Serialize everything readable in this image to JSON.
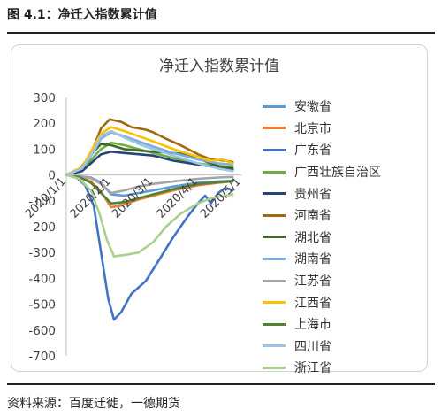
{
  "figure_title": "图 4.1：净迁入指数累计值",
  "source_note": "资料来源：百度迁徙，一德期货",
  "chart_data": {
    "type": "line",
    "title": "净迁入指数累计值",
    "xlabel": "",
    "ylabel": "",
    "xlim": [
      "2020-01-01",
      "2020-05-01"
    ],
    "ylim": [
      -700,
      300
    ],
    "yticks": [
      300,
      200,
      100,
      0,
      -100,
      -200,
      -300,
      -400,
      -500,
      -600,
      -700
    ],
    "xticks": [
      "2020/1/1",
      "2020/2/1",
      "2020/3/1",
      "2020/4/1",
      "2020/5/1"
    ],
    "grid": false,
    "legend_position": "right",
    "series": [
      {
        "name": "安徽省",
        "color": "#5b9bd5",
        "points": [
          [
            "2020-01-01",
            0
          ],
          [
            "2020-01-10",
            -5
          ],
          [
            "2020-01-18",
            -10
          ],
          [
            "2020-01-25",
            -30
          ],
          [
            "2020-02-01",
            -75
          ],
          [
            "2020-02-10",
            -80
          ],
          [
            "2020-02-20",
            -70
          ],
          [
            "2020-03-01",
            -60
          ],
          [
            "2020-03-15",
            -45
          ],
          [
            "2020-04-01",
            -30
          ],
          [
            "2020-04-15",
            -25
          ],
          [
            "2020-04-25",
            -22
          ]
        ]
      },
      {
        "name": "北京市",
        "color": "#ed7d31",
        "points": [
          [
            "2020-01-01",
            0
          ],
          [
            "2020-01-10",
            -8
          ],
          [
            "2020-01-18",
            -25
          ],
          [
            "2020-01-25",
            -65
          ],
          [
            "2020-02-01",
            -125
          ],
          [
            "2020-02-08",
            -118
          ],
          [
            "2020-02-20",
            -95
          ],
          [
            "2020-03-01",
            -80
          ],
          [
            "2020-03-15",
            -60
          ],
          [
            "2020-04-01",
            -40
          ],
          [
            "2020-04-15",
            -30
          ],
          [
            "2020-04-25",
            -25
          ]
        ]
      },
      {
        "name": "广东省",
        "color": "#4472c4",
        "points": [
          [
            "2020-01-01",
            0
          ],
          [
            "2020-01-08",
            -10
          ],
          [
            "2020-01-14",
            -40
          ],
          [
            "2020-01-20",
            -120
          ],
          [
            "2020-01-25",
            -300
          ],
          [
            "2020-01-30",
            -480
          ],
          [
            "2020-02-03",
            -560
          ],
          [
            "2020-02-08",
            -530
          ],
          [
            "2020-02-15",
            -460
          ],
          [
            "2020-02-25",
            -410
          ],
          [
            "2020-03-05",
            -330
          ],
          [
            "2020-03-15",
            -240
          ],
          [
            "2020-03-25",
            -160
          ],
          [
            "2020-04-01",
            -110
          ],
          [
            "2020-04-06",
            -80
          ],
          [
            "2020-04-10",
            -110
          ],
          [
            "2020-04-15",
            -70
          ],
          [
            "2020-04-20",
            -50
          ],
          [
            "2020-04-25",
            -60
          ]
        ]
      },
      {
        "name": "广西壮族自治区",
        "color": "#70ad47",
        "points": [
          [
            "2020-01-01",
            0
          ],
          [
            "2020-01-12",
            20
          ],
          [
            "2020-01-20",
            70
          ],
          [
            "2020-01-25",
            100
          ],
          [
            "2020-02-01",
            125
          ],
          [
            "2020-02-10",
            115
          ],
          [
            "2020-02-20",
            100
          ],
          [
            "2020-03-01",
            85
          ],
          [
            "2020-03-15",
            65
          ],
          [
            "2020-04-01",
            45
          ],
          [
            "2020-04-15",
            35
          ],
          [
            "2020-04-25",
            30
          ]
        ]
      },
      {
        "name": "贵州省",
        "color": "#264478",
        "points": [
          [
            "2020-01-01",
            0
          ],
          [
            "2020-01-12",
            15
          ],
          [
            "2020-01-20",
            55
          ],
          [
            "2020-01-25",
            80
          ],
          [
            "2020-02-01",
            90
          ],
          [
            "2020-02-10",
            85
          ],
          [
            "2020-02-20",
            80
          ],
          [
            "2020-03-01",
            75
          ],
          [
            "2020-03-15",
            55
          ],
          [
            "2020-04-01",
            40
          ],
          [
            "2020-04-15",
            30
          ],
          [
            "2020-04-25",
            25
          ]
        ]
      },
      {
        "name": "河南省",
        "color": "#9e6a14",
        "points": [
          [
            "2020-01-01",
            0
          ],
          [
            "2020-01-10",
            20
          ],
          [
            "2020-01-18",
            80
          ],
          [
            "2020-01-25",
            180
          ],
          [
            "2020-01-31",
            215
          ],
          [
            "2020-02-08",
            205
          ],
          [
            "2020-02-15",
            185
          ],
          [
            "2020-02-25",
            175
          ],
          [
            "2020-03-01",
            165
          ],
          [
            "2020-03-10",
            140
          ],
          [
            "2020-03-20",
            115
          ],
          [
            "2020-04-01",
            80
          ],
          [
            "2020-04-10",
            60
          ],
          [
            "2020-04-20",
            55
          ],
          [
            "2020-04-25",
            50
          ]
        ]
      },
      {
        "name": "湖北省",
        "color": "#43682b",
        "points": [
          [
            "2020-01-01",
            0
          ],
          [
            "2020-01-12",
            30
          ],
          [
            "2020-01-20",
            90
          ],
          [
            "2020-01-25",
            120
          ],
          [
            "2020-02-01",
            115
          ],
          [
            "2020-02-10",
            100
          ],
          [
            "2020-02-20",
            95
          ],
          [
            "2020-03-01",
            90
          ],
          [
            "2020-03-15",
            85
          ],
          [
            "2020-03-25",
            80
          ],
          [
            "2020-04-05",
            55
          ],
          [
            "2020-04-15",
            35
          ],
          [
            "2020-04-25",
            20
          ]
        ]
      },
      {
        "name": "湖南省",
        "color": "#7cafdd",
        "points": [
          [
            "2020-01-01",
            0
          ],
          [
            "2020-01-12",
            25
          ],
          [
            "2020-01-20",
            90
          ],
          [
            "2020-01-25",
            140
          ],
          [
            "2020-02-01",
            165
          ],
          [
            "2020-02-10",
            150
          ],
          [
            "2020-02-20",
            130
          ],
          [
            "2020-03-01",
            110
          ],
          [
            "2020-03-15",
            85
          ],
          [
            "2020-04-01",
            60
          ],
          [
            "2020-04-15",
            45
          ],
          [
            "2020-04-25",
            40
          ]
        ]
      },
      {
        "name": "江苏省",
        "color": "#a5a5a5",
        "points": [
          [
            "2020-01-01",
            0
          ],
          [
            "2020-01-10",
            -5
          ],
          [
            "2020-01-18",
            -12
          ],
          [
            "2020-01-25",
            -35
          ],
          [
            "2020-02-01",
            -70
          ],
          [
            "2020-02-10",
            -60
          ],
          [
            "2020-02-20",
            -45
          ],
          [
            "2020-03-01",
            -35
          ],
          [
            "2020-03-15",
            -25
          ],
          [
            "2020-04-01",
            -15
          ],
          [
            "2020-04-15",
            -10
          ],
          [
            "2020-04-25",
            -8
          ]
        ]
      },
      {
        "name": "江西省",
        "color": "#ffc000",
        "points": [
          [
            "2020-01-01",
            0
          ],
          [
            "2020-01-12",
            30
          ],
          [
            "2020-01-20",
            110
          ],
          [
            "2020-01-25",
            160
          ],
          [
            "2020-02-01",
            185
          ],
          [
            "2020-02-10",
            170
          ],
          [
            "2020-02-20",
            150
          ],
          [
            "2020-03-01",
            130
          ],
          [
            "2020-03-15",
            100
          ],
          [
            "2020-04-01",
            70
          ],
          [
            "2020-04-10",
            55
          ],
          [
            "2020-04-18",
            60
          ],
          [
            "2020-04-25",
            45
          ]
        ]
      },
      {
        "name": "上海市",
        "color": "#548235",
        "points": [
          [
            "2020-01-01",
            0
          ],
          [
            "2020-01-10",
            -8
          ],
          [
            "2020-01-18",
            -30
          ],
          [
            "2020-01-25",
            -70
          ],
          [
            "2020-02-01",
            -110
          ],
          [
            "2020-02-10",
            -105
          ],
          [
            "2020-02-20",
            -90
          ],
          [
            "2020-03-01",
            -75
          ],
          [
            "2020-03-15",
            -55
          ],
          [
            "2020-04-01",
            -35
          ],
          [
            "2020-04-15",
            -28
          ],
          [
            "2020-04-25",
            -25
          ]
        ]
      },
      {
        "name": "四川省",
        "color": "#9dc3e6",
        "points": [
          [
            "2020-01-01",
            0
          ],
          [
            "2020-01-12",
            25
          ],
          [
            "2020-01-20",
            95
          ],
          [
            "2020-01-25",
            150
          ],
          [
            "2020-02-01",
            170
          ],
          [
            "2020-02-10",
            145
          ],
          [
            "2020-02-20",
            120
          ],
          [
            "2020-03-01",
            100
          ],
          [
            "2020-03-15",
            75
          ],
          [
            "2020-04-01",
            45
          ],
          [
            "2020-04-15",
            25
          ],
          [
            "2020-04-25",
            15
          ]
        ]
      },
      {
        "name": "浙江省",
        "color": "#a9d18e",
        "points": [
          [
            "2020-01-01",
            0
          ],
          [
            "2020-01-10",
            -15
          ],
          [
            "2020-01-18",
            -60
          ],
          [
            "2020-01-24",
            -150
          ],
          [
            "2020-01-29",
            -250
          ],
          [
            "2020-02-03",
            -315
          ],
          [
            "2020-02-10",
            -310
          ],
          [
            "2020-02-20",
            -300
          ],
          [
            "2020-03-01",
            -260
          ],
          [
            "2020-03-10",
            -200
          ],
          [
            "2020-03-20",
            -150
          ],
          [
            "2020-04-01",
            -110
          ],
          [
            "2020-04-10",
            -90
          ],
          [
            "2020-04-20",
            -80
          ],
          [
            "2020-04-25",
            -75
          ]
        ]
      }
    ]
  }
}
